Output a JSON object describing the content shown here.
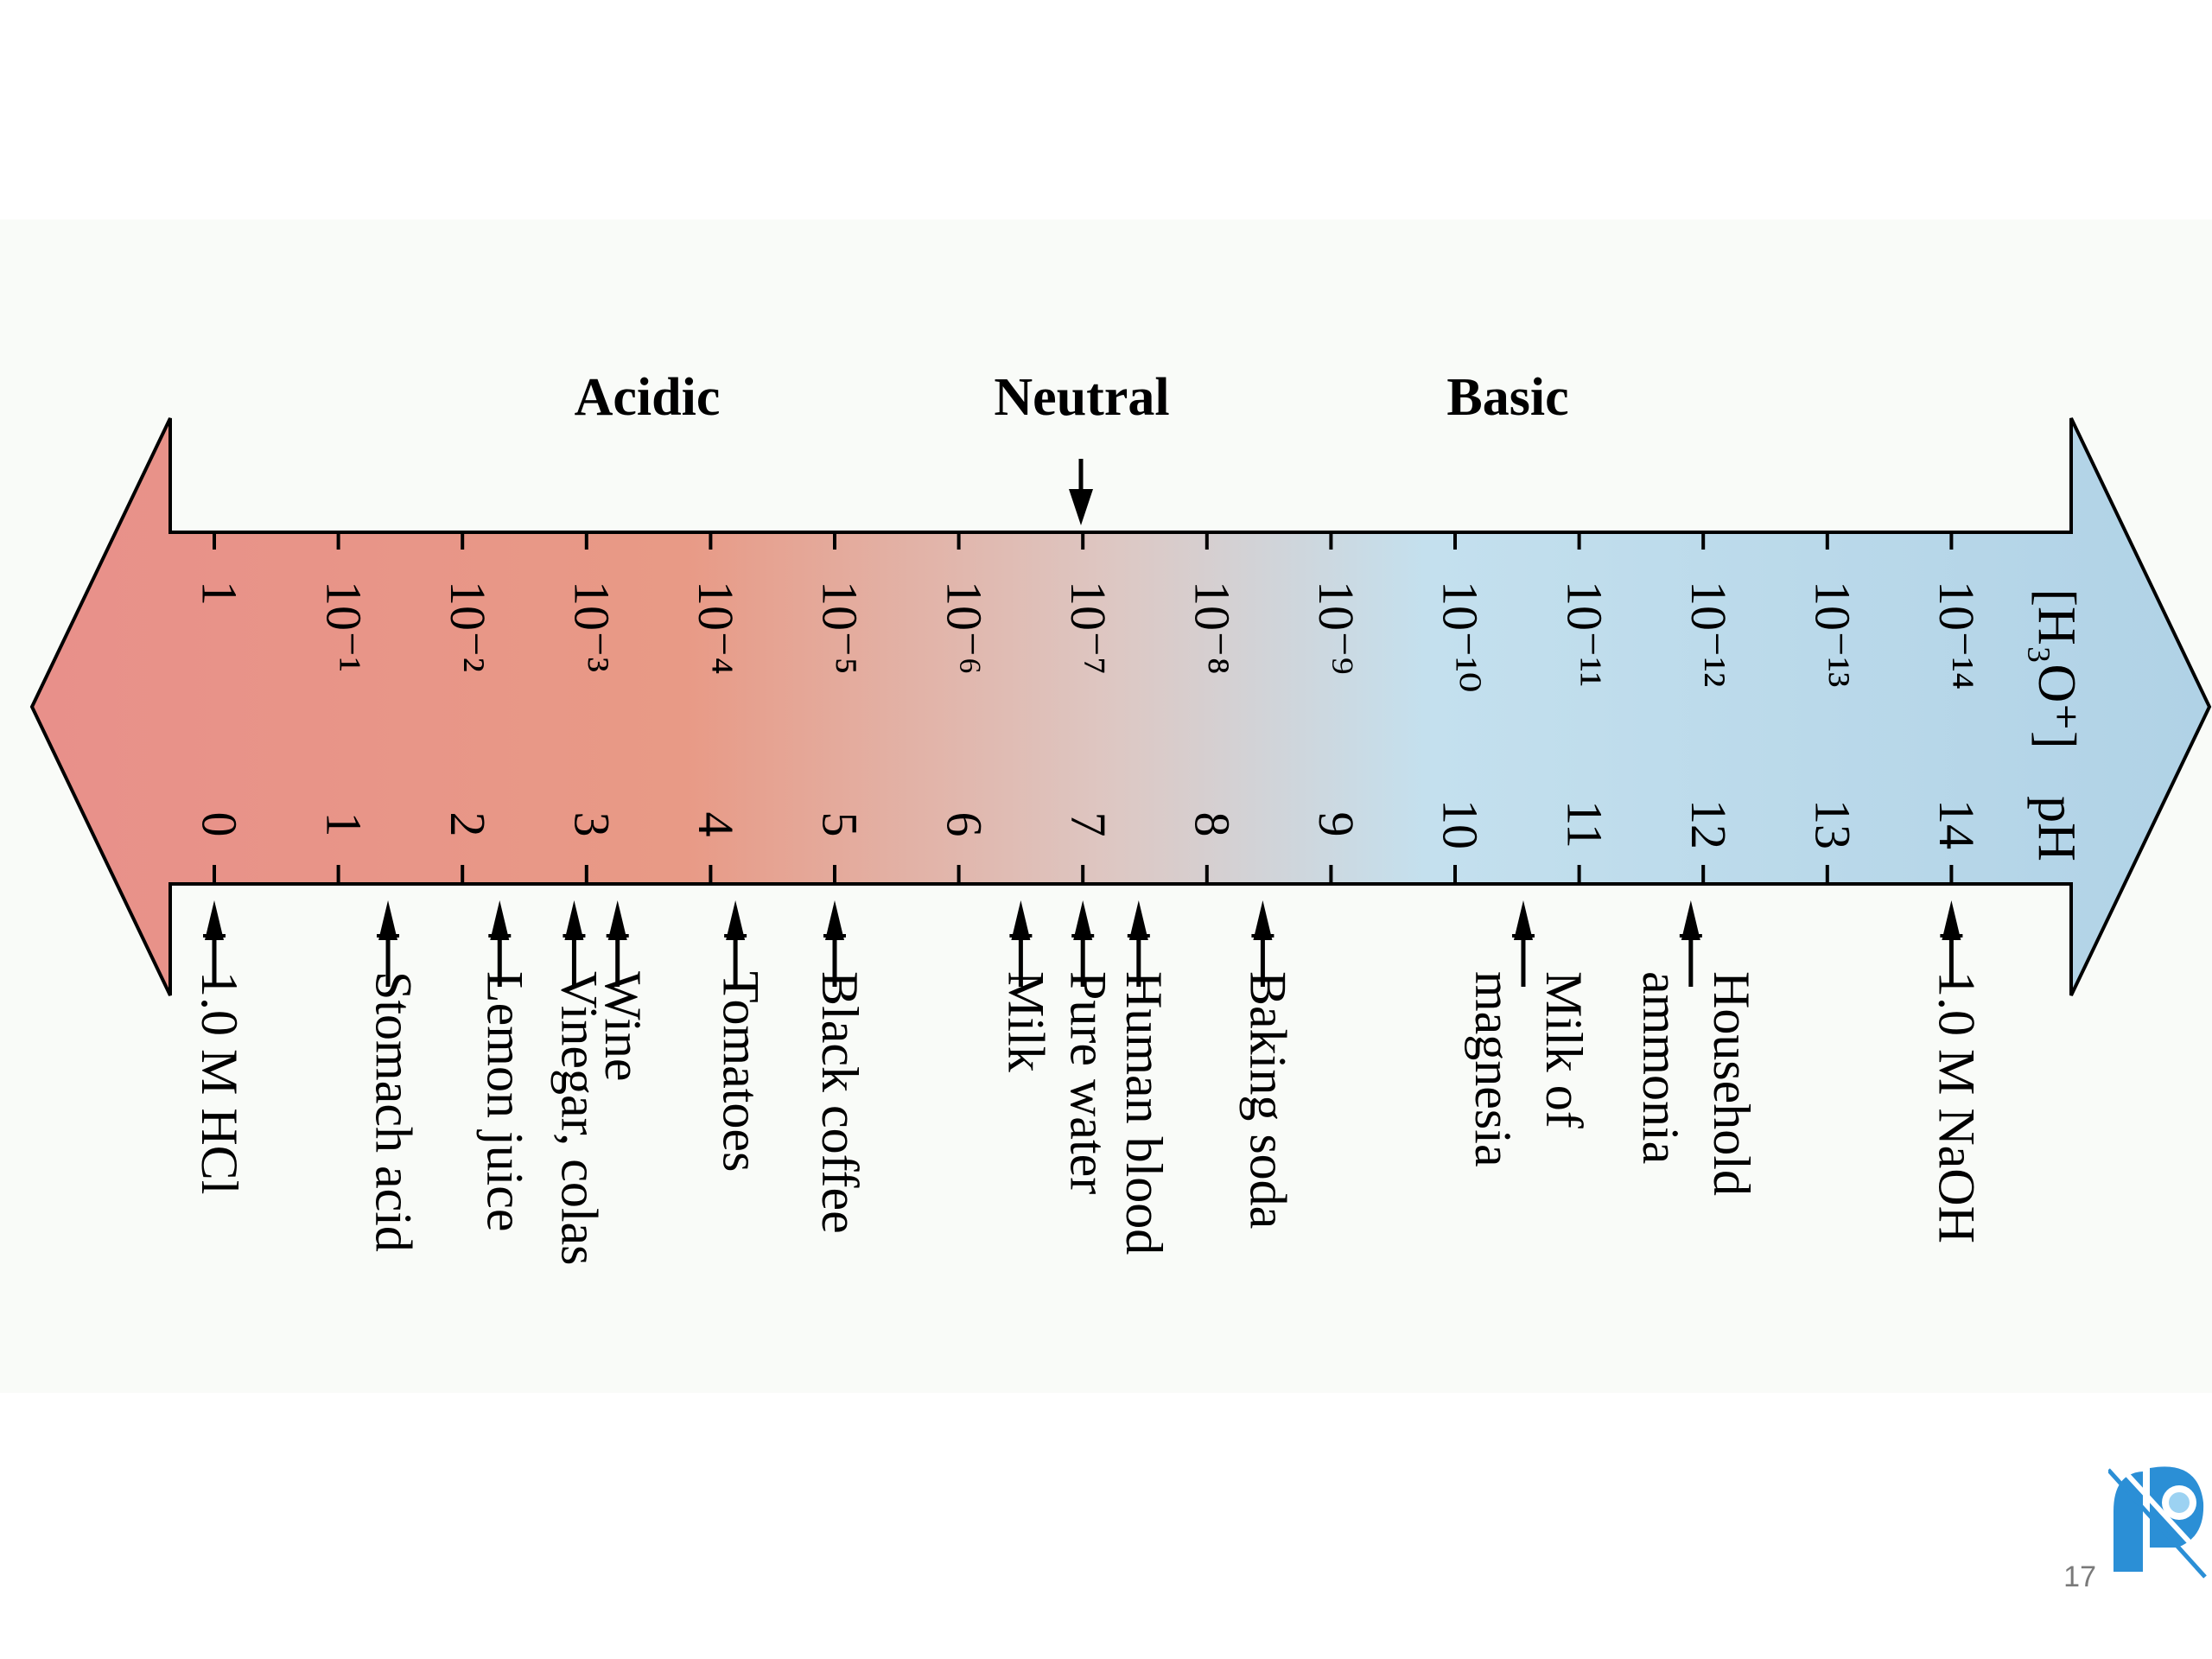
{
  "regions": {
    "acidic": "Acidic",
    "neutral": "Neutral",
    "basic": "Basic"
  },
  "axis_labels": {
    "h3o": "[H₃O⁺]",
    "ph": "pH"
  },
  "concentrations": [
    "1",
    "10⁻¹",
    "10⁻²",
    "10⁻³",
    "10⁻⁴",
    "10⁻⁵",
    "10⁻⁶",
    "10⁻⁷",
    "10⁻⁸",
    "10⁻⁹",
    "10⁻¹⁰",
    "10⁻¹¹",
    "10⁻¹²",
    "10⁻¹³",
    "10⁻¹⁴"
  ],
  "ph_values": [
    "0",
    "1",
    "2",
    "3",
    "4",
    "5",
    "6",
    "7",
    "8",
    "9",
    "10",
    "11",
    "12",
    "13",
    "14"
  ],
  "neutral_ph": 7,
  "substances": [
    {
      "lines": [
        "1.0 M HCl"
      ],
      "ph": 0
    },
    {
      "lines": [
        "Stomach acid"
      ],
      "ph": 1.4
    },
    {
      "lines": [
        "Lemon juice"
      ],
      "ph": 2.3
    },
    {
      "lines": [
        "Vinegar, colas"
      ],
      "ph": 2.9
    },
    {
      "lines": [
        "Wine"
      ],
      "ph": 3.25
    },
    {
      "lines": [
        "Tomatoes"
      ],
      "ph": 4.2
    },
    {
      "lines": [
        "Black coffee"
      ],
      "ph": 5.0
    },
    {
      "lines": [
        "Milk"
      ],
      "ph": 6.5
    },
    {
      "lines": [
        "Pure water"
      ],
      "ph": 7.0
    },
    {
      "lines": [
        "Human blood"
      ],
      "ph": 7.45
    },
    {
      "lines": [
        "Baking soda"
      ],
      "ph": 8.45
    },
    {
      "lines": [
        "magnesia",
        "Milk of"
      ],
      "ph": 10.55
    },
    {
      "lines": [
        "ammonia",
        "Household"
      ],
      "ph": 11.9
    },
    {
      "lines": [
        "1.0 M NaOH"
      ],
      "ph": 14
    }
  ],
  "colors": {
    "acid": "#e8908a",
    "mid_acid": "#e89a86",
    "neutral": "#ddc8c4",
    "base": "#c4e0ee",
    "base_end": "#b0d2e6"
  },
  "page_number": "17"
}
